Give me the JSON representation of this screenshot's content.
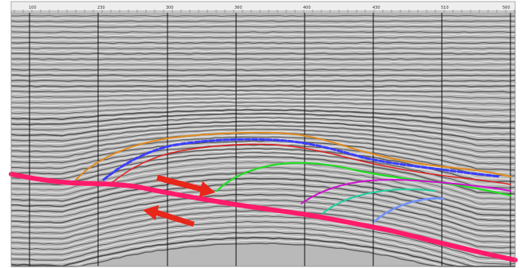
{
  "ruler": {
    "ticks": [
      {
        "label": "100"
      },
      {
        "label": "230"
      },
      {
        "label": "300"
      },
      {
        "label": "360"
      },
      {
        "label": "400"
      },
      {
        "label": "430"
      },
      {
        "label": "510"
      },
      {
        "label": "560"
      }
    ]
  },
  "horizons": [
    {
      "name": "orange",
      "color": "#e08a1e"
    },
    {
      "name": "blue",
      "color": "#3a3cff"
    },
    {
      "name": "red",
      "color": "#e02020"
    },
    {
      "name": "green",
      "color": "#22dd22"
    },
    {
      "name": "magenta",
      "color": "#d010d0"
    },
    {
      "name": "teal",
      "color": "#20d0a0"
    },
    {
      "name": "light-blue",
      "color": "#7090ff"
    },
    {
      "name": "fault",
      "color": "#ff1a6a"
    }
  ],
  "colors": {
    "arrow": "#e8261a",
    "well_line": "#111111",
    "ruler_bg": "#eeeeee"
  }
}
